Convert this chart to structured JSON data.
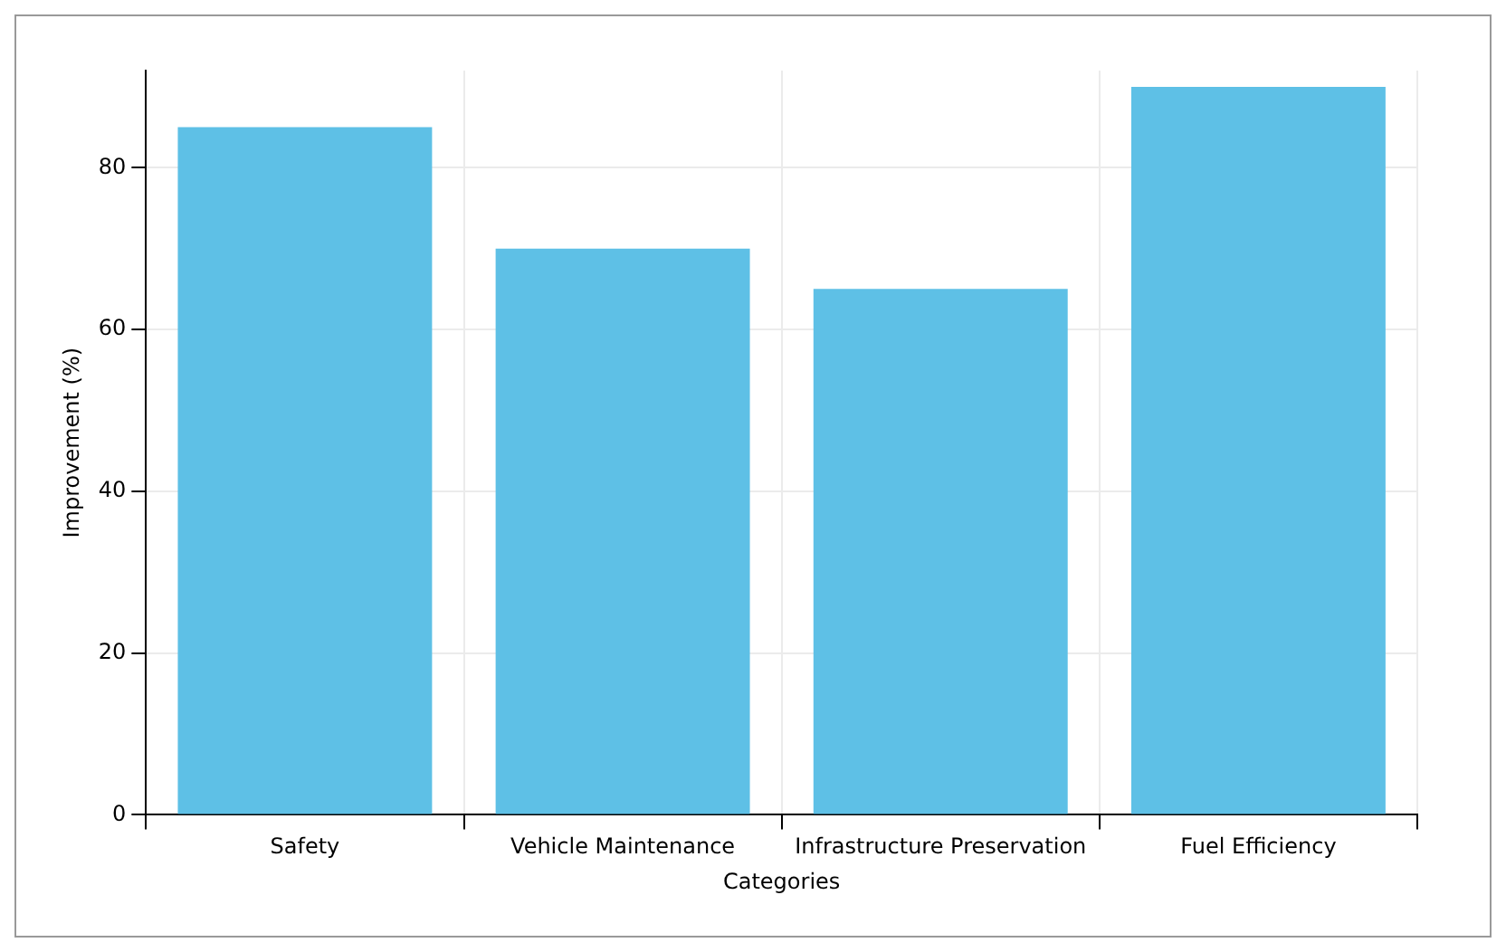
{
  "chart_data": {
    "type": "bar",
    "xlabel": "Categories",
    "ylabel": "Improvement (%)",
    "categories": [
      "Safety",
      "Vehicle Maintenance",
      "Infrastructure Preservation",
      "Fuel Efficiency"
    ],
    "values": [
      85,
      70,
      65,
      90
    ],
    "color": "#5ec0e6",
    "ylim": [
      0,
      92
    ],
    "yticks": [
      0,
      20,
      40,
      60,
      80
    ],
    "grid": true,
    "legend": false
  }
}
